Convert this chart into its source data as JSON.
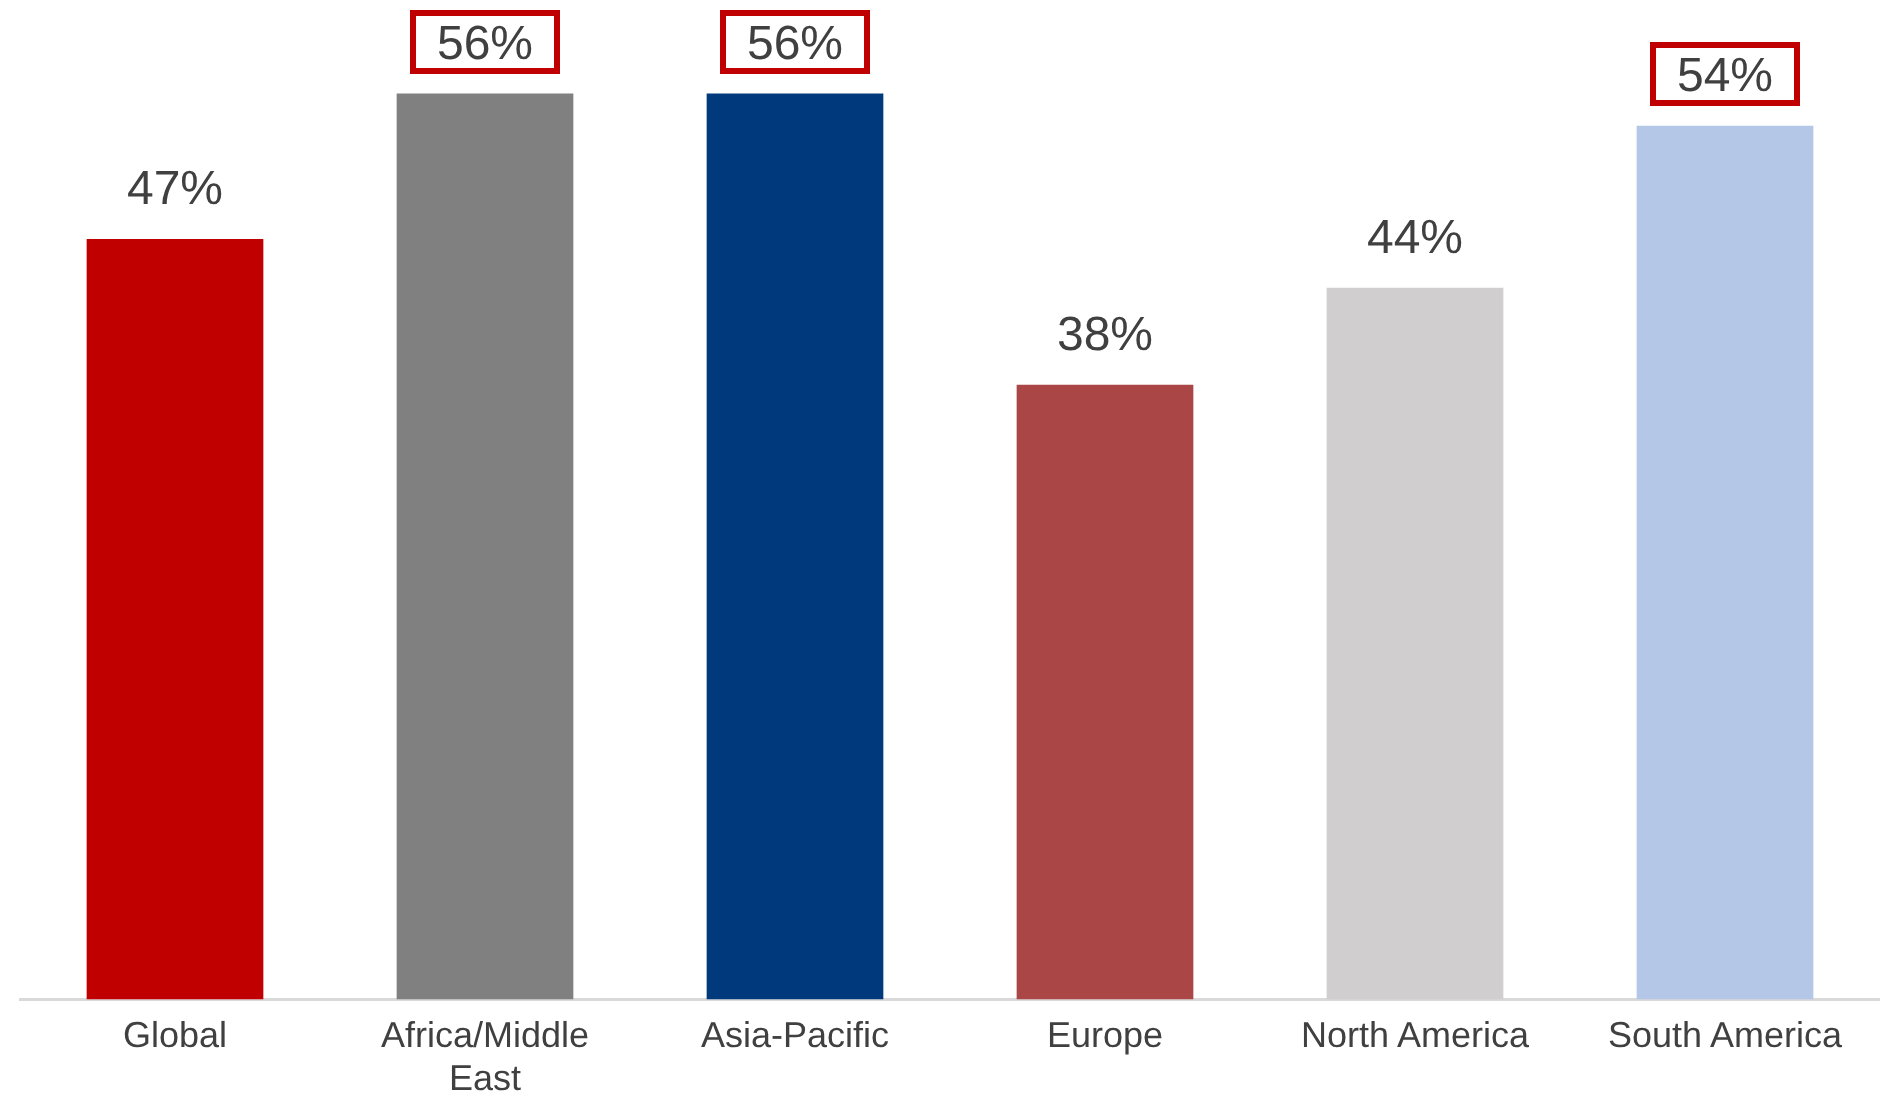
{
  "chart_data": {
    "type": "bar",
    "categories": [
      "Global",
      "Africa/Middle East",
      "Asia-Pacific",
      "Europe",
      "North America",
      "South America"
    ],
    "values": [
      47,
      56,
      56,
      38,
      44,
      54
    ],
    "colors": [
      "#c00000",
      "#808080",
      "#003a7d",
      "#ab4646",
      "#d0cece",
      "#b4c7e7"
    ],
    "value_labels": [
      "47%",
      "56%",
      "56%",
      "38%",
      "44%",
      "54%"
    ],
    "grid": false,
    "legend": false
  }
}
